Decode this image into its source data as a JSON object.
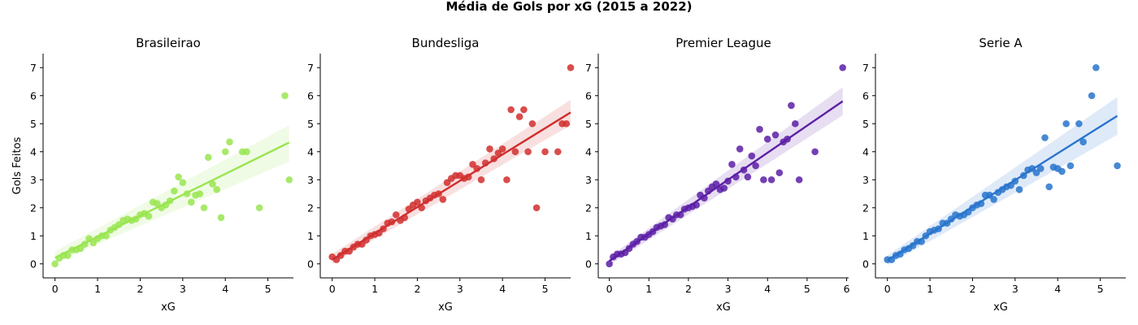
{
  "figure": {
    "title": "Média de Gols por xG (2015 a 2022)"
  },
  "chart_data": [
    {
      "type": "scatter",
      "title": "Brasileirao",
      "xlabel": "xG",
      "ylabel": "Gols Feitos",
      "color": "#99e550",
      "xlim": [
        -0.28,
        5.6
      ],
      "ylim": [
        -0.5,
        7.5
      ],
      "xticks": [
        0,
        1,
        2,
        3,
        4,
        5
      ],
      "yticks": [
        0,
        1,
        2,
        3,
        4,
        5,
        6,
        7
      ],
      "regression": {
        "x": [
          0,
          5.5
        ],
        "y": [
          0.22,
          4.33
        ],
        "ci_at_x0": [
          0.05,
          0.45
        ],
        "ci_at_x1": [
          3.65,
          4.95
        ]
      },
      "points": [
        [
          0,
          0
        ],
        [
          0.1,
          0.2
        ],
        [
          0.2,
          0.3
        ],
        [
          0.3,
          0.3
        ],
        [
          0.4,
          0.5
        ],
        [
          0.5,
          0.5
        ],
        [
          0.6,
          0.55
        ],
        [
          0.7,
          0.7
        ],
        [
          0.8,
          0.9
        ],
        [
          0.9,
          0.75
        ],
        [
          1.0,
          0.9
        ],
        [
          1.1,
          1.0
        ],
        [
          1.2,
          1.0
        ],
        [
          1.3,
          1.2
        ],
        [
          1.4,
          1.3
        ],
        [
          1.5,
          1.4
        ],
        [
          1.6,
          1.55
        ],
        [
          1.7,
          1.6
        ],
        [
          1.8,
          1.55
        ],
        [
          1.9,
          1.6
        ],
        [
          2.0,
          1.75
        ],
        [
          2.1,
          1.8
        ],
        [
          2.2,
          1.7
        ],
        [
          2.3,
          2.2
        ],
        [
          2.4,
          2.15
        ],
        [
          2.5,
          2.0
        ],
        [
          2.6,
          2.1
        ],
        [
          2.7,
          2.25
        ],
        [
          2.8,
          2.6
        ],
        [
          2.9,
          3.1
        ],
        [
          3.0,
          2.9
        ],
        [
          3.1,
          2.5
        ],
        [
          3.2,
          2.2
        ],
        [
          3.3,
          2.45
        ],
        [
          3.4,
          2.5
        ],
        [
          3.5,
          2.0
        ],
        [
          3.6,
          3.8
        ],
        [
          3.7,
          2.85
        ],
        [
          3.8,
          2.65
        ],
        [
          3.9,
          1.65
        ],
        [
          4.0,
          4.0
        ],
        [
          4.1,
          4.35
        ],
        [
          4.4,
          4.0
        ],
        [
          4.5,
          4.0
        ],
        [
          4.8,
          2.0
        ],
        [
          5.4,
          6.0
        ],
        [
          5.5,
          3.0
        ]
      ]
    },
    {
      "type": "scatter",
      "title": "Bundesliga",
      "xlabel": "xG",
      "ylabel": "",
      "color": "#d12e2e",
      "xlim": [
        -0.28,
        5.6
      ],
      "ylim": [
        -0.5,
        7.5
      ],
      "xticks": [
        0,
        1,
        2,
        3,
        4,
        5
      ],
      "yticks": [
        0,
        1,
        2,
        3,
        4,
        5,
        6,
        7
      ],
      "regression": {
        "x": [
          0,
          5.6
        ],
        "y": [
          0.15,
          5.4
        ],
        "ci_at_x0": [
          0.0,
          0.35
        ],
        "ci_at_x1": [
          4.95,
          5.85
        ]
      },
      "points": [
        [
          0,
          0.25
        ],
        [
          0.1,
          0.15
        ],
        [
          0.2,
          0.3
        ],
        [
          0.3,
          0.45
        ],
        [
          0.4,
          0.45
        ],
        [
          0.5,
          0.6
        ],
        [
          0.6,
          0.7
        ],
        [
          0.7,
          0.7
        ],
        [
          0.8,
          0.85
        ],
        [
          0.9,
          1.0
        ],
        [
          1.0,
          1.05
        ],
        [
          1.1,
          1.1
        ],
        [
          1.2,
          1.25
        ],
        [
          1.3,
          1.45
        ],
        [
          1.4,
          1.5
        ],
        [
          1.5,
          1.75
        ],
        [
          1.6,
          1.55
        ],
        [
          1.7,
          1.65
        ],
        [
          1.8,
          1.95
        ],
        [
          1.9,
          2.1
        ],
        [
          2.0,
          2.2
        ],
        [
          2.1,
          2.0
        ],
        [
          2.2,
          2.25
        ],
        [
          2.3,
          2.35
        ],
        [
          2.4,
          2.45
        ],
        [
          2.5,
          2.5
        ],
        [
          2.6,
          2.3
        ],
        [
          2.7,
          2.9
        ],
        [
          2.8,
          3.05
        ],
        [
          2.9,
          3.15
        ],
        [
          3.0,
          3.15
        ],
        [
          3.1,
          3.05
        ],
        [
          3.2,
          3.1
        ],
        [
          3.3,
          3.55
        ],
        [
          3.4,
          3.4
        ],
        [
          3.5,
          3.0
        ],
        [
          3.6,
          3.6
        ],
        [
          3.7,
          4.1
        ],
        [
          3.8,
          3.75
        ],
        [
          3.9,
          3.95
        ],
        [
          4.0,
          4.1
        ],
        [
          4.1,
          3.0
        ],
        [
          4.2,
          5.5
        ],
        [
          4.3,
          4.0
        ],
        [
          4.4,
          5.25
        ],
        [
          4.5,
          5.5
        ],
        [
          4.6,
          4.0
        ],
        [
          4.7,
          5.0
        ],
        [
          4.8,
          2.0
        ],
        [
          5.0,
          4.0
        ],
        [
          5.3,
          4.0
        ],
        [
          5.4,
          5.0
        ],
        [
          5.5,
          5.0
        ],
        [
          5.6,
          7.0
        ]
      ]
    },
    {
      "type": "scatter",
      "title": "Premier League",
      "xlabel": "xG",
      "ylabel": "",
      "color": "#5c1fa6",
      "xlim": [
        -0.28,
        6.05
      ],
      "ylim": [
        -0.5,
        7.5
      ],
      "xticks": [
        0,
        1,
        2,
        3,
        4,
        5,
        6
      ],
      "yticks": [
        0,
        1,
        2,
        3,
        4,
        5,
        6,
        7
      ],
      "regression": {
        "x": [
          0,
          5.9
        ],
        "y": [
          0.1,
          5.8
        ],
        "ci_at_x0": [
          -0.05,
          0.25
        ],
        "ci_at_x1": [
          5.3,
          6.3
        ]
      },
      "points": [
        [
          0,
          0
        ],
        [
          0.1,
          0.25
        ],
        [
          0.2,
          0.35
        ],
        [
          0.3,
          0.35
        ],
        [
          0.4,
          0.4
        ],
        [
          0.5,
          0.55
        ],
        [
          0.6,
          0.7
        ],
        [
          0.7,
          0.8
        ],
        [
          0.8,
          0.95
        ],
        [
          0.9,
          0.95
        ],
        [
          1.0,
          1.05
        ],
        [
          1.1,
          1.15
        ],
        [
          1.2,
          1.3
        ],
        [
          1.3,
          1.35
        ],
        [
          1.4,
          1.4
        ],
        [
          1.5,
          1.65
        ],
        [
          1.6,
          1.6
        ],
        [
          1.7,
          1.75
        ],
        [
          1.8,
          1.75
        ],
        [
          1.9,
          1.95
        ],
        [
          2.0,
          2.0
        ],
        [
          2.1,
          2.05
        ],
        [
          2.2,
          2.1
        ],
        [
          2.3,
          2.45
        ],
        [
          2.4,
          2.35
        ],
        [
          2.5,
          2.6
        ],
        [
          2.6,
          2.75
        ],
        [
          2.7,
          2.85
        ],
        [
          2.8,
          2.65
        ],
        [
          2.9,
          2.7
        ],
        [
          3.0,
          2.95
        ],
        [
          3.1,
          3.55
        ],
        [
          3.2,
          3.1
        ],
        [
          3.3,
          4.1
        ],
        [
          3.4,
          3.35
        ],
        [
          3.5,
          3.1
        ],
        [
          3.6,
          3.85
        ],
        [
          3.7,
          3.5
        ],
        [
          3.8,
          4.8
        ],
        [
          3.9,
          3.0
        ],
        [
          4.0,
          4.45
        ],
        [
          4.1,
          3.0
        ],
        [
          4.2,
          4.6
        ],
        [
          4.3,
          3.25
        ],
        [
          4.4,
          4.35
        ],
        [
          4.5,
          4.45
        ],
        [
          4.6,
          5.65
        ],
        [
          4.7,
          5.0
        ],
        [
          4.8,
          3.0
        ],
        [
          5.2,
          4.0
        ],
        [
          5.9,
          7.0
        ]
      ]
    },
    {
      "type": "scatter",
      "title": "Serie A",
      "xlabel": "xG",
      "ylabel": "",
      "color": "#2874cd",
      "xlim": [
        -0.28,
        5.6
      ],
      "ylim": [
        -0.5,
        7.5
      ],
      "xticks": [
        0,
        1,
        2,
        3,
        4,
        5
      ],
      "yticks": [
        0,
        1,
        2,
        3,
        4,
        5,
        6,
        7
      ],
      "regression": {
        "x": [
          0,
          5.4
        ],
        "y": [
          0.12,
          5.28
        ],
        "ci_at_x0": [
          -0.05,
          0.3
        ],
        "ci_at_x1": [
          4.6,
          5.95
        ]
      },
      "points": [
        [
          0,
          0.15
        ],
        [
          0.1,
          0.15
        ],
        [
          0.2,
          0.3
        ],
        [
          0.3,
          0.35
        ],
        [
          0.4,
          0.5
        ],
        [
          0.5,
          0.55
        ],
        [
          0.6,
          0.65
        ],
        [
          0.7,
          0.8
        ],
        [
          0.8,
          0.8
        ],
        [
          0.9,
          1.0
        ],
        [
          1.0,
          1.15
        ],
        [
          1.1,
          1.2
        ],
        [
          1.2,
          1.25
        ],
        [
          1.3,
          1.45
        ],
        [
          1.4,
          1.45
        ],
        [
          1.5,
          1.6
        ],
        [
          1.6,
          1.75
        ],
        [
          1.7,
          1.7
        ],
        [
          1.8,
          1.75
        ],
        [
          1.9,
          1.85
        ],
        [
          2.0,
          2.0
        ],
        [
          2.1,
          2.1
        ],
        [
          2.2,
          2.15
        ],
        [
          2.3,
          2.45
        ],
        [
          2.4,
          2.45
        ],
        [
          2.5,
          2.3
        ],
        [
          2.6,
          2.55
        ],
        [
          2.7,
          2.65
        ],
        [
          2.8,
          2.75
        ],
        [
          2.9,
          2.8
        ],
        [
          3.0,
          2.95
        ],
        [
          3.1,
          2.65
        ],
        [
          3.2,
          3.15
        ],
        [
          3.3,
          3.35
        ],
        [
          3.4,
          3.4
        ],
        [
          3.5,
          3.25
        ],
        [
          3.6,
          3.4
        ],
        [
          3.7,
          4.5
        ],
        [
          3.8,
          2.75
        ],
        [
          3.9,
          3.45
        ],
        [
          4.0,
          3.4
        ],
        [
          4.1,
          3.3
        ],
        [
          4.2,
          5.0
        ],
        [
          4.3,
          3.5
        ],
        [
          4.5,
          5.0
        ],
        [
          4.6,
          4.35
        ],
        [
          4.8,
          6.0
        ],
        [
          4.9,
          7.0
        ],
        [
          5.4,
          3.5
        ]
      ]
    }
  ]
}
